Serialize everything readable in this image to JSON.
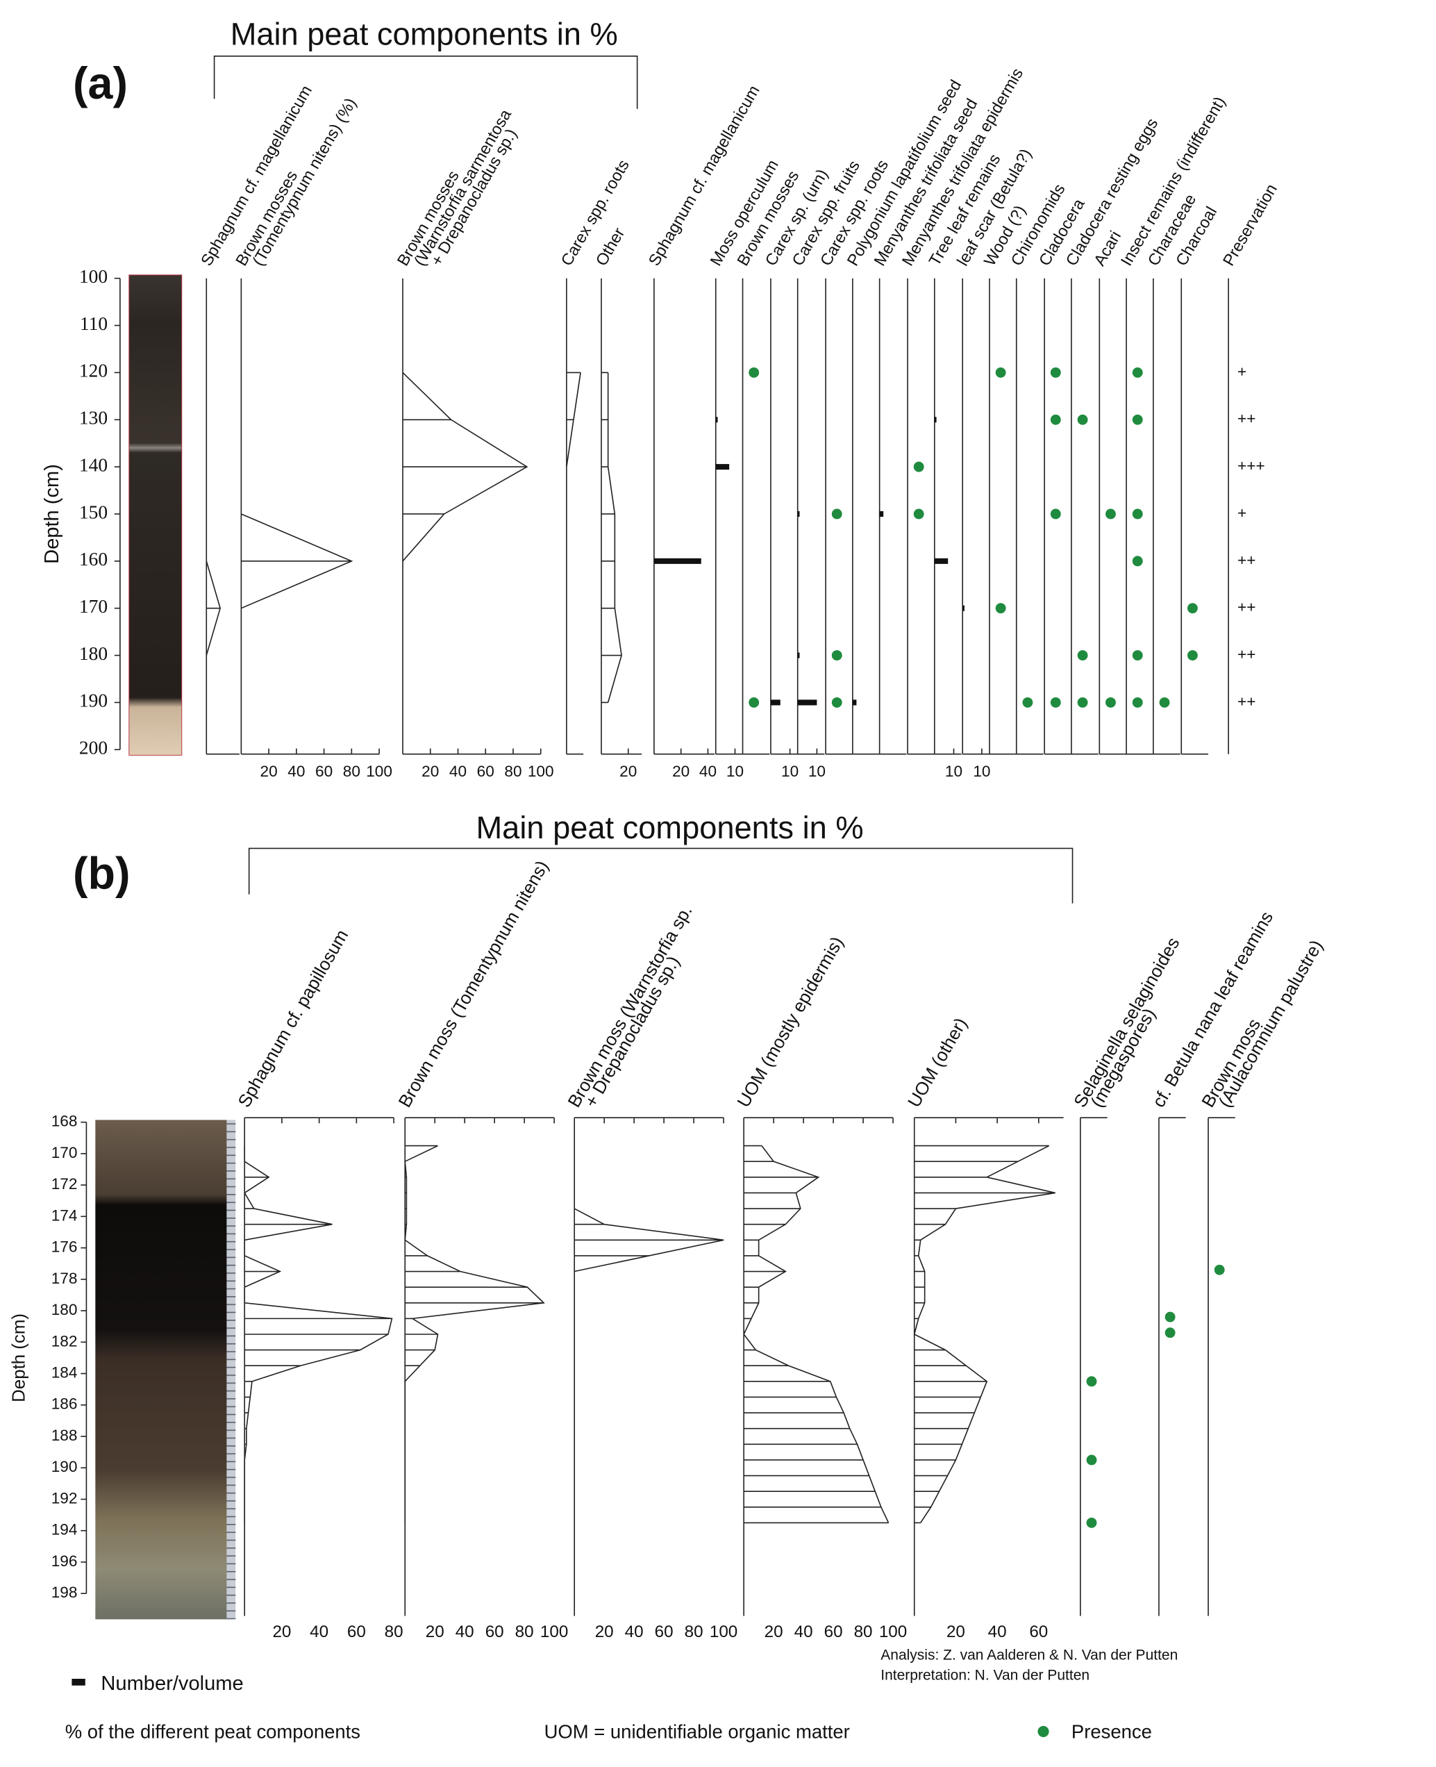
{
  "chart_data": [
    {
      "type": "stratigraphic",
      "panel_label": "(a)",
      "title": "Main peat components in %",
      "y_label": "Depth (cm)",
      "ylim": [
        100,
        200
      ],
      "yticks": [
        100,
        110,
        120,
        130,
        140,
        150,
        160,
        170,
        180,
        190,
        200
      ],
      "presence_color": "#1f8b3e",
      "depths": [
        120,
        130,
        140,
        150,
        160,
        170,
        180,
        190
      ],
      "columns": [
        {
          "name": [
            "Sphagnum cf. magellanicum"
          ],
          "kind": "curve",
          "xlim": [
            0,
            24
          ],
          "values": [
            null,
            null,
            null,
            null,
            0,
            10,
            0,
            null
          ]
        },
        {
          "name": [
            "Brown mosses",
            "(Tomentypnum nitens) (%)"
          ],
          "kind": "curve",
          "xlim": [
            0,
            100
          ],
          "xticks": [
            20,
            40,
            60,
            80,
            100
          ],
          "values": [
            null,
            null,
            null,
            0,
            80,
            0,
            null,
            null
          ]
        },
        {
          "name": [
            "Brown mosses",
            "(Warnstorfia sarmentosa",
            "+ Drepanocladus sp.)"
          ],
          "kind": "curve",
          "xlim": [
            0,
            100
          ],
          "xticks": [
            20,
            40,
            60,
            80,
            100
          ],
          "values": [
            0,
            35,
            90,
            30,
            0,
            null,
            null,
            null
          ]
        },
        {
          "name": [
            "Carex spp. roots"
          ],
          "kind": "curve",
          "xlim": [
            0,
            12
          ],
          "values": [
            10,
            5,
            0,
            null,
            null,
            null,
            null,
            null
          ]
        },
        {
          "name": [
            "Other"
          ],
          "kind": "curve",
          "xlim": [
            0,
            30
          ],
          "xticks": [
            20
          ],
          "values": [
            5,
            5,
            5,
            10,
            10,
            10,
            15,
            5
          ]
        },
        {
          "name": [
            "Sphagnum cf. magellanicum"
          ],
          "kind": "bar",
          "xlim": [
            0,
            45
          ],
          "xticks": [
            20,
            40
          ],
          "values": [
            null,
            null,
            null,
            null,
            35,
            null,
            null,
            null
          ]
        },
        {
          "name": [
            "Moss operculum"
          ],
          "kind": "bar",
          "xlim": [
            0,
            14
          ],
          "xticks": [
            10
          ],
          "values": [
            null,
            1,
            7,
            null,
            null,
            null,
            null,
            null
          ]
        },
        {
          "name": [
            "Brown mosses"
          ],
          "kind": "presence",
          "present_at": [
            120,
            190
          ]
        },
        {
          "name": [
            "Carex sp. (urn)"
          ],
          "kind": "bar",
          "xlim": [
            0,
            14
          ],
          "xticks": [
            10
          ],
          "values": [
            null,
            null,
            null,
            null,
            null,
            null,
            null,
            5
          ]
        },
        {
          "name": [
            "Carex spp. fruits"
          ],
          "kind": "bar",
          "xlim": [
            0,
            14
          ],
          "xticks": [
            10
          ],
          "values": [
            null,
            null,
            null,
            1,
            null,
            null,
            1,
            10
          ]
        },
        {
          "name": [
            "Carex spp. roots"
          ],
          "kind": "presence",
          "present_at": [
            150,
            180,
            190
          ]
        },
        {
          "name": [
            "Polygonium lapatifolium seed"
          ],
          "kind": "bar",
          "xlim": [
            0,
            14
          ],
          "values": [
            null,
            null,
            null,
            null,
            null,
            null,
            null,
            2
          ]
        },
        {
          "name": [
            "Menyanthes trifoliata seed"
          ],
          "kind": "bar",
          "xlim": [
            0,
            14
          ],
          "values": [
            null,
            null,
            null,
            2,
            null,
            null,
            null,
            null
          ]
        },
        {
          "name": [
            "Menyanthes trifoliata epidermis"
          ],
          "kind": "presence",
          "present_at": [
            140,
            150
          ]
        },
        {
          "name": [
            "Tree leaf remains"
          ],
          "kind": "bar",
          "xlim": [
            0,
            14
          ],
          "xticks": [
            10
          ],
          "values": [
            null,
            1,
            null,
            null,
            7,
            null,
            null,
            null
          ]
        },
        {
          "name": [
            "leaf scar (Betula?)"
          ],
          "kind": "bar",
          "xlim": [
            0,
            14
          ],
          "xticks": [
            10
          ],
          "values": [
            null,
            null,
            null,
            null,
            null,
            1,
            null,
            null
          ]
        },
        {
          "name": [
            "Wood (?)"
          ],
          "kind": "presence",
          "present_at": [
            120,
            170
          ]
        },
        {
          "name": [
            "Chironomids"
          ],
          "kind": "presence",
          "present_at": [
            190
          ]
        },
        {
          "name": [
            "Cladocera"
          ],
          "kind": "presence",
          "present_at": [
            120,
            130,
            150,
            190
          ]
        },
        {
          "name": [
            "Cladocera resting eggs"
          ],
          "kind": "presence",
          "present_at": [
            130,
            180,
            190
          ]
        },
        {
          "name": [
            "Acari"
          ],
          "kind": "presence",
          "present_at": [
            150,
            190
          ]
        },
        {
          "name": [
            "Insect remains (indifferent)"
          ],
          "kind": "presence",
          "present_at": [
            120,
            130,
            150,
            160,
            180,
            190
          ]
        },
        {
          "name": [
            "Characeae"
          ],
          "kind": "presence",
          "present_at": [
            190
          ]
        },
        {
          "name": [
            "Charcoal"
          ],
          "kind": "presence",
          "present_at": [
            170,
            180
          ]
        },
        {
          "name": [
            "Preservation"
          ],
          "kind": "text",
          "labels": [
            "+",
            "++",
            "+++",
            "+",
            "++",
            "++",
            "++",
            "++"
          ]
        }
      ]
    },
    {
      "type": "stratigraphic",
      "panel_label": "(b)",
      "title": "Main peat components in %",
      "y_label": "Depth (cm)",
      "ylim": [
        168,
        199
      ],
      "yticks": [
        168,
        170,
        172,
        174,
        176,
        178,
        180,
        182,
        184,
        186,
        188,
        190,
        192,
        194,
        196,
        198
      ],
      "presence_color": "#1f8b3e",
      "depths": [
        169.5,
        170.5,
        171.5,
        172.5,
        173.5,
        174.5,
        175.5,
        176.5,
        177.5,
        178.5,
        179.5,
        180.5,
        181.5,
        182.5,
        183.5,
        184.5,
        185.5,
        186.5,
        187.5,
        188.5,
        189.5,
        190.5,
        191.5,
        192.5,
        193.5
      ],
      "columns": [
        {
          "name": [
            "Sphagnum cf. papillosum"
          ],
          "kind": "curve",
          "xlim": [
            0,
            80
          ],
          "xticks": [
            20,
            40,
            60,
            80
          ],
          "values": [
            0,
            0,
            13,
            0,
            5,
            47,
            0,
            0,
            19,
            0,
            0,
            79,
            77,
            62,
            30,
            4,
            3,
            2,
            1,
            1,
            0,
            0,
            0,
            0,
            0
          ]
        },
        {
          "name": [
            "Brown moss (Tomentypnum nitens)"
          ],
          "kind": "curve",
          "xlim": [
            0,
            100
          ],
          "xticks": [
            20,
            40,
            60,
            80,
            100
          ],
          "values": [
            22,
            0,
            1,
            1,
            1,
            1,
            0,
            15,
            37,
            82,
            93,
            5,
            22,
            20,
            10,
            0,
            0,
            0,
            0,
            0,
            0,
            0,
            0,
            0,
            0
          ]
        },
        {
          "name": [
            "Brown moss (Warnstorfia sp.",
            "+ Drepanocladus sp.)"
          ],
          "kind": "curve",
          "xlim": [
            0,
            100
          ],
          "xticks": [
            20,
            40,
            60,
            80,
            100
          ],
          "values": [
            null,
            null,
            null,
            null,
            0,
            20,
            100,
            50,
            0,
            null,
            null,
            null,
            null,
            null,
            null,
            null,
            null,
            null,
            null,
            null,
            null,
            null,
            null,
            null,
            null
          ]
        },
        {
          "name": [
            "UOM (mostly epidermis)"
          ],
          "kind": "curve",
          "xlim": [
            0,
            100
          ],
          "xticks": [
            20,
            40,
            60,
            80,
            100
          ],
          "values": [
            12,
            20,
            50,
            35,
            38,
            28,
            10,
            10,
            28,
            10,
            10,
            5,
            0,
            8,
            30,
            58,
            62,
            67,
            71,
            76,
            80,
            84,
            88,
            92,
            97
          ]
        },
        {
          "name": [
            "UOM (other)"
          ],
          "kind": "curve",
          "xlim": [
            0,
            72
          ],
          "xticks": [
            20,
            40,
            60
          ],
          "values": [
            65,
            50,
            35,
            68,
            20,
            15,
            3,
            2,
            5,
            5,
            5,
            2,
            0,
            15,
            25,
            35,
            32,
            29,
            26,
            23,
            20,
            16,
            12,
            8,
            3
          ]
        },
        {
          "name": [
            "Selaginella selaginoides",
            "(megaspores)"
          ],
          "kind": "presence",
          "present_at": [
            184.5,
            189.5,
            193.5
          ]
        },
        {
          "name": [
            "cf. Betula nana leaf reamins"
          ],
          "kind": "presence",
          "present_at": [
            180.4,
            181.4
          ]
        },
        {
          "name": [
            "Brown moss",
            "(Aulacomnium palustre)"
          ],
          "kind": "presence",
          "present_at": [
            177.4
          ]
        }
      ]
    }
  ],
  "legend": {
    "bar": "Number/volume",
    "percent": "% of the different peat components",
    "uom": "UOM = unidentifiable organic matter",
    "presence": "Presence"
  },
  "credits": [
    "Analysis: Z. van Aalderen & N. Van der Putten",
    "Interpretation: N. Van der Putten"
  ]
}
